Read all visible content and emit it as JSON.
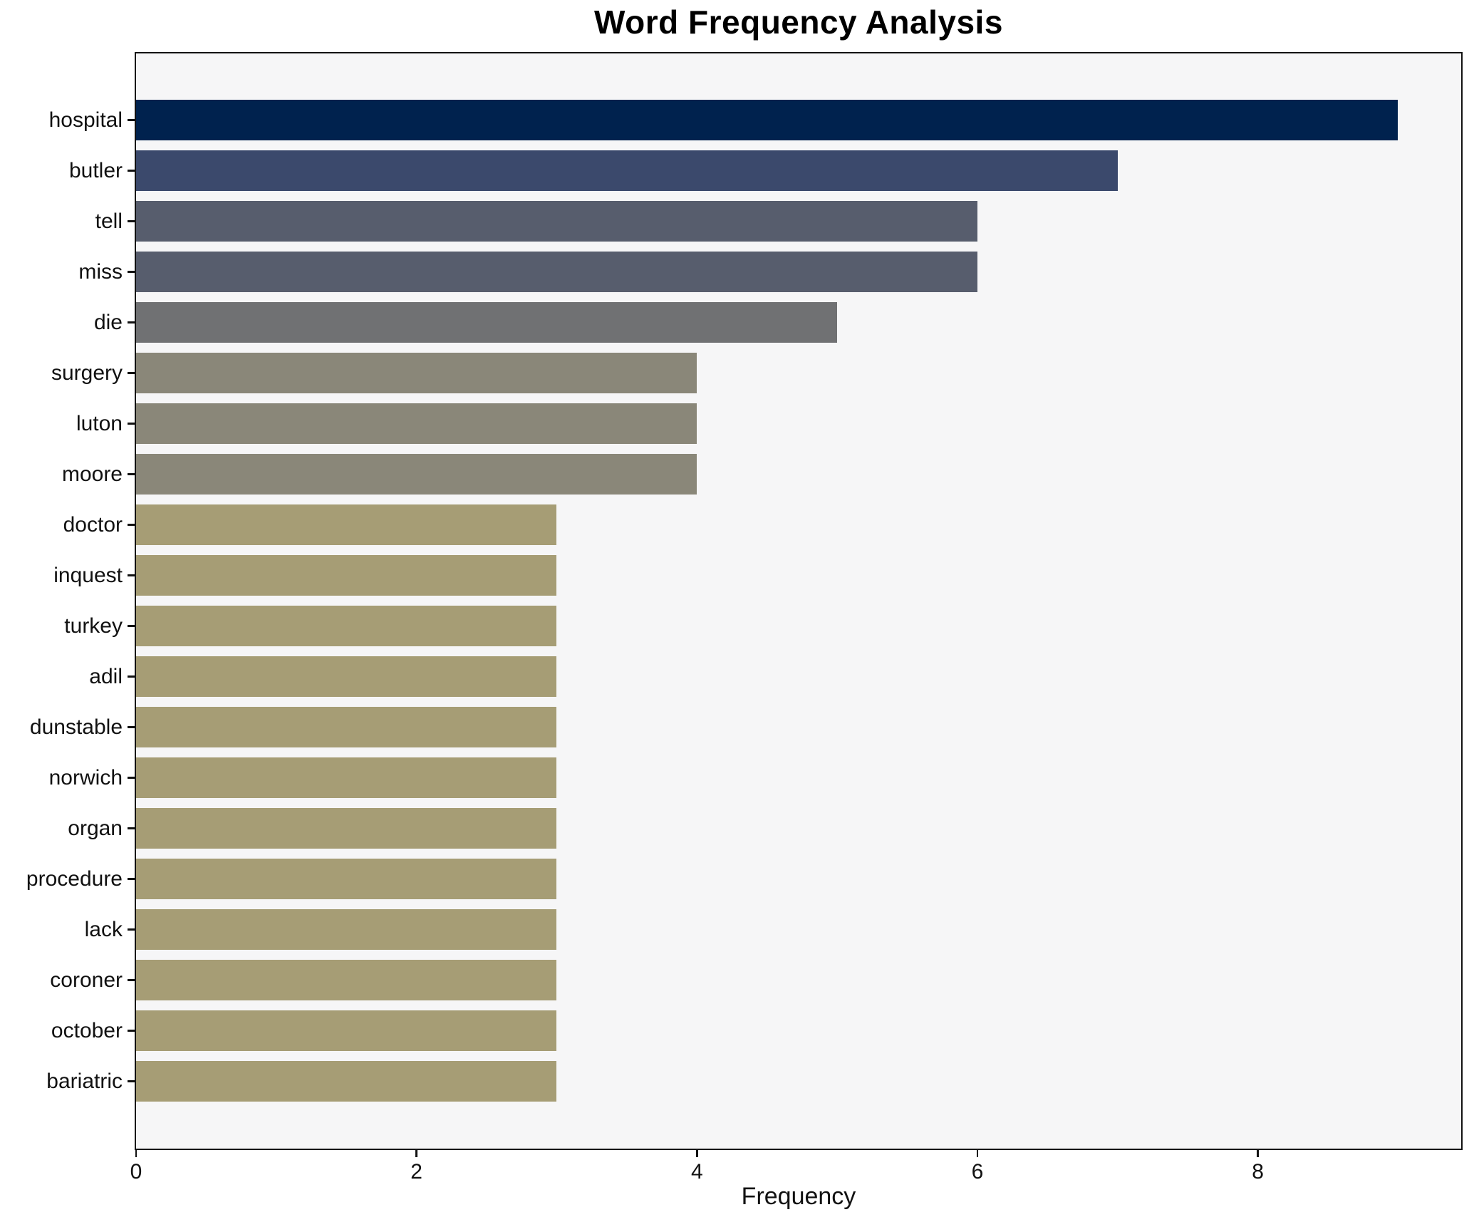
{
  "title": "Word Frequency Analysis",
  "xlabel": "Frequency",
  "plot": {
    "background": "#f6f6f7",
    "spine_color": "#121212",
    "outer_background": "#ffffff"
  },
  "chart_data": {
    "type": "bar",
    "orientation": "horizontal",
    "title": "Word Frequency Analysis",
    "xlabel": "Frequency",
    "ylabel": "",
    "grid": false,
    "legend": false,
    "xlim": [
      0,
      9.45
    ],
    "x_ticks": [
      0,
      2,
      4,
      6,
      8
    ],
    "categories": [
      "hospital",
      "butler",
      "tell",
      "miss",
      "die",
      "surgery",
      "luton",
      "moore",
      "doctor",
      "inquest",
      "turkey",
      "adil",
      "dunstable",
      "norwich",
      "organ",
      "procedure",
      "lack",
      "coroner",
      "october",
      "bariatric"
    ],
    "values": [
      9,
      7,
      6,
      6,
      5,
      4,
      4,
      4,
      3,
      3,
      3,
      3,
      3,
      3,
      3,
      3,
      3,
      3,
      3,
      3
    ],
    "bar_colors": [
      "#00224e",
      "#3b496c",
      "#575d6d",
      "#575d6d",
      "#707173",
      "#8a8779",
      "#8a8779",
      "#8a8779",
      "#a69d75",
      "#a69d75",
      "#a69d75",
      "#a69d75",
      "#a69d75",
      "#a69d75",
      "#a69d75",
      "#a69d75",
      "#a69d75",
      "#a69d75",
      "#a69d75",
      "#a69d75"
    ],
    "colormap": "cividis"
  }
}
